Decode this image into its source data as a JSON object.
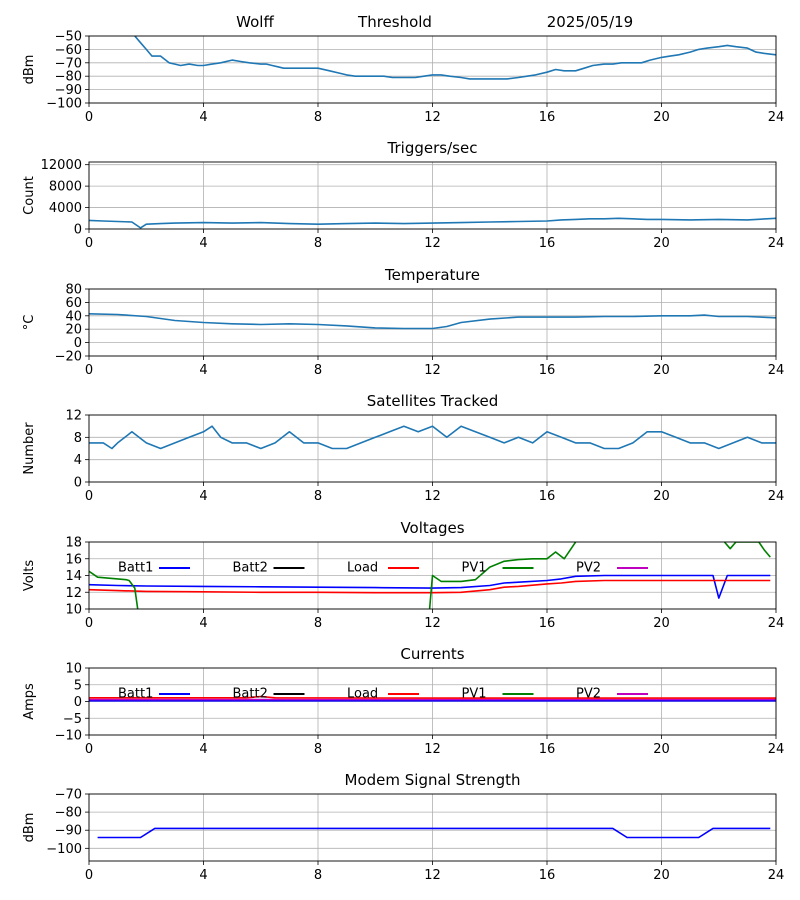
{
  "header": {
    "station": "Wolff",
    "metric": "Threshold",
    "date": "2025/05/19"
  },
  "legend_colors": {
    "Batt1": "#0000ff",
    "Batt2": "#000000",
    "Load": "#ff0000",
    "PV1": "#008000",
    "PV2": "#bf00bf"
  },
  "chart_data": [
    {
      "id": "threshold",
      "type": "line",
      "title": "",
      "xlabel": "",
      "ylabel": "dBm",
      "xlim": [
        0,
        24
      ],
      "ylim": [
        -100,
        -50
      ],
      "xticks": [
        0,
        4,
        8,
        12,
        16,
        20,
        24
      ],
      "yticks": [
        -100,
        -90,
        -80,
        -70,
        -60,
        -50
      ],
      "grid": true,
      "color": "#1f77b4",
      "series": [
        {
          "x": [
            1.6,
            1.8,
            2.0,
            2.2,
            2.5,
            2.8,
            3.0,
            3.2,
            3.5,
            3.8,
            4.0,
            4.3,
            4.6,
            5.0,
            5.3,
            5.6,
            6.0,
            6.2,
            6.4,
            6.6,
            6.8,
            7.0,
            7.3,
            7.6,
            8.0,
            8.4,
            8.8,
            9.0,
            9.3,
            9.6,
            10.0,
            10.3,
            10.6,
            11.0,
            11.4,
            11.7,
            12.0,
            12.3,
            12.6,
            13.0,
            13.3,
            13.6,
            14.0,
            14.3,
            14.6,
            15.0,
            15.3,
            15.6,
            16.0,
            16.3,
            16.6,
            17.0,
            17.3,
            17.6,
            18.0,
            18.3,
            18.6,
            19.0,
            19.3,
            19.6,
            20.0,
            20.3,
            20.6,
            21.0,
            21.3,
            21.6,
            22.0,
            22.3,
            22.6,
            23.0,
            23.3,
            23.6,
            24.0
          ],
          "y": [
            -50,
            -55,
            -60,
            -65,
            -65,
            -70,
            -71,
            -72,
            -71,
            -72,
            -72,
            -71,
            -70,
            -68,
            -69,
            -70,
            -71,
            -71,
            -72,
            -73,
            -74,
            -74,
            -74,
            -74,
            -74,
            -76,
            -78,
            -79,
            -80,
            -80,
            -80,
            -80,
            -81,
            -81,
            -81,
            -80,
            -79,
            -79,
            -80,
            -81,
            -82,
            -82,
            -82,
            -82,
            -82,
            -81,
            -80,
            -79,
            -77,
            -75,
            -76,
            -76,
            -74,
            -72,
            -71,
            -71,
            -70,
            -70,
            -70,
            -68,
            -66,
            -65,
            -64,
            -62,
            -60,
            -59,
            -58,
            -57,
            -58,
            -59,
            -62,
            -63,
            -64
          ]
        }
      ]
    },
    {
      "id": "triggers",
      "type": "line",
      "title": "Triggers/sec",
      "xlabel": "",
      "ylabel": "Count",
      "xlim": [
        0,
        24
      ],
      "ylim": [
        0,
        12500
      ],
      "xticks": [
        0,
        4,
        8,
        12,
        16,
        20,
        24
      ],
      "yticks": [
        0,
        4000,
        8000,
        12000
      ],
      "grid": true,
      "color": "#1f77b4",
      "series": [
        {
          "x": [
            0,
            0.5,
            1,
            1.5,
            1.8,
            2.0,
            2.5,
            3,
            4,
            5,
            6,
            7,
            8,
            9,
            10,
            11,
            12,
            13,
            14,
            15,
            16,
            16.5,
            17,
            17.5,
            18,
            18.5,
            19,
            19.5,
            20,
            21,
            22,
            23,
            24
          ],
          "y": [
            1600,
            1500,
            1400,
            1300,
            200,
            900,
            1000,
            1100,
            1200,
            1100,
            1200,
            1000,
            900,
            1000,
            1100,
            1000,
            1100,
            1200,
            1300,
            1400,
            1500,
            1700,
            1800,
            1900,
            1900,
            2000,
            1900,
            1800,
            1800,
            1700,
            1800,
            1700,
            2000
          ]
        }
      ]
    },
    {
      "id": "temperature",
      "type": "line",
      "title": "Temperature",
      "xlabel": "",
      "ylabel": "°C",
      "xlim": [
        0,
        24
      ],
      "ylim": [
        -20,
        80
      ],
      "xticks": [
        0,
        4,
        8,
        12,
        16,
        20,
        24
      ],
      "yticks": [
        -20,
        0,
        20,
        40,
        60,
        80
      ],
      "grid": true,
      "color": "#1f77b4",
      "series": [
        {
          "x": [
            0,
            1,
            2,
            3,
            4,
            5,
            6,
            7,
            8,
            9,
            10,
            11,
            12,
            12.5,
            13,
            14,
            15,
            16,
            17,
            18,
            19,
            20,
            21,
            21.5,
            22,
            23,
            24
          ],
          "y": [
            43,
            42,
            39,
            33,
            30,
            28,
            27,
            28,
            27,
            25,
            22,
            21,
            21,
            24,
            30,
            35,
            38,
            38,
            38,
            39,
            39,
            40,
            40,
            41,
            39,
            39,
            37
          ]
        }
      ]
    },
    {
      "id": "satellites",
      "type": "line",
      "title": "Satellites Tracked",
      "xlabel": "",
      "ylabel": "Number",
      "xlim": [
        0,
        24
      ],
      "ylim": [
        0,
        12
      ],
      "xticks": [
        0,
        4,
        8,
        12,
        16,
        20,
        24
      ],
      "yticks": [
        0,
        4,
        8,
        12
      ],
      "grid": true,
      "color": "#1f77b4",
      "series": [
        {
          "x": [
            0,
            0.5,
            0.8,
            1,
            1.5,
            2,
            2.5,
            3,
            3.5,
            4,
            4.3,
            4.6,
            5,
            5.5,
            6,
            6.5,
            7,
            7.5,
            8,
            8.5,
            9,
            9.5,
            10,
            10.5,
            11,
            11.5,
            12,
            12.5,
            13,
            13.5,
            14,
            14.5,
            15,
            15.5,
            16,
            16.5,
            17,
            17.5,
            18,
            18.5,
            19,
            19.5,
            20,
            20.5,
            21,
            21.5,
            22,
            22.5,
            23,
            23.5,
            24
          ],
          "y": [
            7,
            7,
            6,
            7,
            9,
            7,
            6,
            7,
            8,
            9,
            10,
            8,
            7,
            7,
            6,
            7,
            9,
            7,
            7,
            6,
            6,
            7,
            8,
            9,
            10,
            9,
            10,
            8,
            10,
            9,
            8,
            7,
            8,
            7,
            9,
            8,
            7,
            7,
            6,
            6,
            7,
            9,
            9,
            8,
            7,
            7,
            6,
            7,
            8,
            7,
            7
          ]
        }
      ]
    },
    {
      "id": "voltages",
      "type": "line",
      "title": "Voltages",
      "xlabel": "",
      "ylabel": "Volts",
      "xlim": [
        0,
        24
      ],
      "ylim": [
        10,
        18
      ],
      "xticks": [
        0,
        4,
        8,
        12,
        16,
        20,
        24
      ],
      "yticks": [
        10,
        12,
        14,
        16,
        18
      ],
      "grid": true,
      "legend": [
        "Batt1",
        "Batt2",
        "Load",
        "PV1",
        "PV2"
      ],
      "series": [
        {
          "name": "Batt1",
          "x": [
            0,
            1,
            2,
            4,
            6,
            8,
            10,
            12,
            13,
            14,
            14.5,
            15,
            16,
            16.5,
            17,
            18,
            20,
            21,
            21.8,
            22.0,
            22.3,
            23,
            23.8
          ],
          "y": [
            12.9,
            12.8,
            12.75,
            12.7,
            12.65,
            12.6,
            12.55,
            12.5,
            12.55,
            12.8,
            13.1,
            13.2,
            13.4,
            13.6,
            13.9,
            14.0,
            14.0,
            14.0,
            14.0,
            11.3,
            14.0,
            14.0,
            14.0
          ]
        },
        {
          "name": "Load",
          "x": [
            0,
            1,
            2,
            4,
            6,
            8,
            10,
            12,
            13,
            14,
            14.5,
            15,
            16,
            16.5,
            17,
            18,
            20,
            22,
            23.8
          ],
          "y": [
            12.3,
            12.2,
            12.1,
            12.05,
            12.0,
            12.0,
            11.95,
            11.95,
            12.0,
            12.3,
            12.6,
            12.7,
            13.0,
            13.1,
            13.3,
            13.4,
            13.4,
            13.4,
            13.4
          ]
        },
        {
          "name": "PV1",
          "x": [
            0,
            0.3,
            1,
            1.3,
            1.4,
            1.6,
            1.7
          ],
          "y": [
            14.5,
            13.8,
            13.6,
            13.5,
            13.4,
            12.5,
            10.0
          ]
        },
        {
          "name": "PV1",
          "x": [
            11.9,
            12.0,
            12.3,
            12.5,
            13.0,
            13.5,
            14.0,
            14.5,
            15.0,
            15.5,
            16.0,
            16.3,
            16.6,
            16.9,
            17.0
          ],
          "y": [
            10.0,
            14.0,
            13.3,
            13.3,
            13.3,
            13.5,
            15.0,
            15.7,
            15.9,
            16.0,
            16.0,
            16.8,
            16.0,
            17.5,
            18.0
          ]
        },
        {
          "name": "PV1",
          "x": [
            22.2,
            22.4,
            22.6,
            23.4,
            23.6,
            23.8
          ],
          "y": [
            18.0,
            17.2,
            18.0,
            18.0,
            17.0,
            16.2
          ]
        }
      ]
    },
    {
      "id": "currents",
      "type": "line",
      "title": "Currents",
      "xlabel": "",
      "ylabel": "Amps",
      "xlim": [
        0,
        24
      ],
      "ylim": [
        -10,
        10
      ],
      "xticks": [
        0,
        4,
        8,
        12,
        16,
        20,
        24
      ],
      "yticks": [
        -10,
        -5,
        0,
        5,
        10
      ],
      "grid": true,
      "legend": [
        "Batt1",
        "Batt2",
        "Load",
        "PV1",
        "PV2"
      ],
      "series": [
        {
          "name": "Batt1",
          "x": [
            0,
            24
          ],
          "y": [
            0.2,
            0.2
          ]
        },
        {
          "name": "PV2",
          "x": [
            0,
            24
          ],
          "y": [
            0.6,
            0.6
          ]
        },
        {
          "name": "Load",
          "x": [
            0,
            4,
            5.5,
            6,
            6.5,
            12,
            18,
            24
          ],
          "y": [
            1.1,
            1.1,
            1.1,
            1.5,
            1.1,
            1.0,
            1.0,
            1.0
          ]
        }
      ]
    },
    {
      "id": "modem",
      "type": "line",
      "title": "Modem Signal Strength",
      "xlabel": "",
      "ylabel": "dBm",
      "xlim": [
        0,
        24
      ],
      "ylim": [
        -107,
        -70
      ],
      "xticks": [
        0,
        4,
        8,
        12,
        16,
        20,
        24
      ],
      "yticks": [
        -100,
        -90,
        -80,
        -70
      ],
      "grid": true,
      "color": "#0000ff",
      "series": [
        {
          "x": [
            0.3,
            1.8,
            2.3,
            18.3,
            18.8,
            21.3,
            21.8,
            23.8
          ],
          "y": [
            -94,
            -94,
            -89,
            -89,
            -94,
            -94,
            -89,
            -89
          ]
        }
      ]
    }
  ]
}
